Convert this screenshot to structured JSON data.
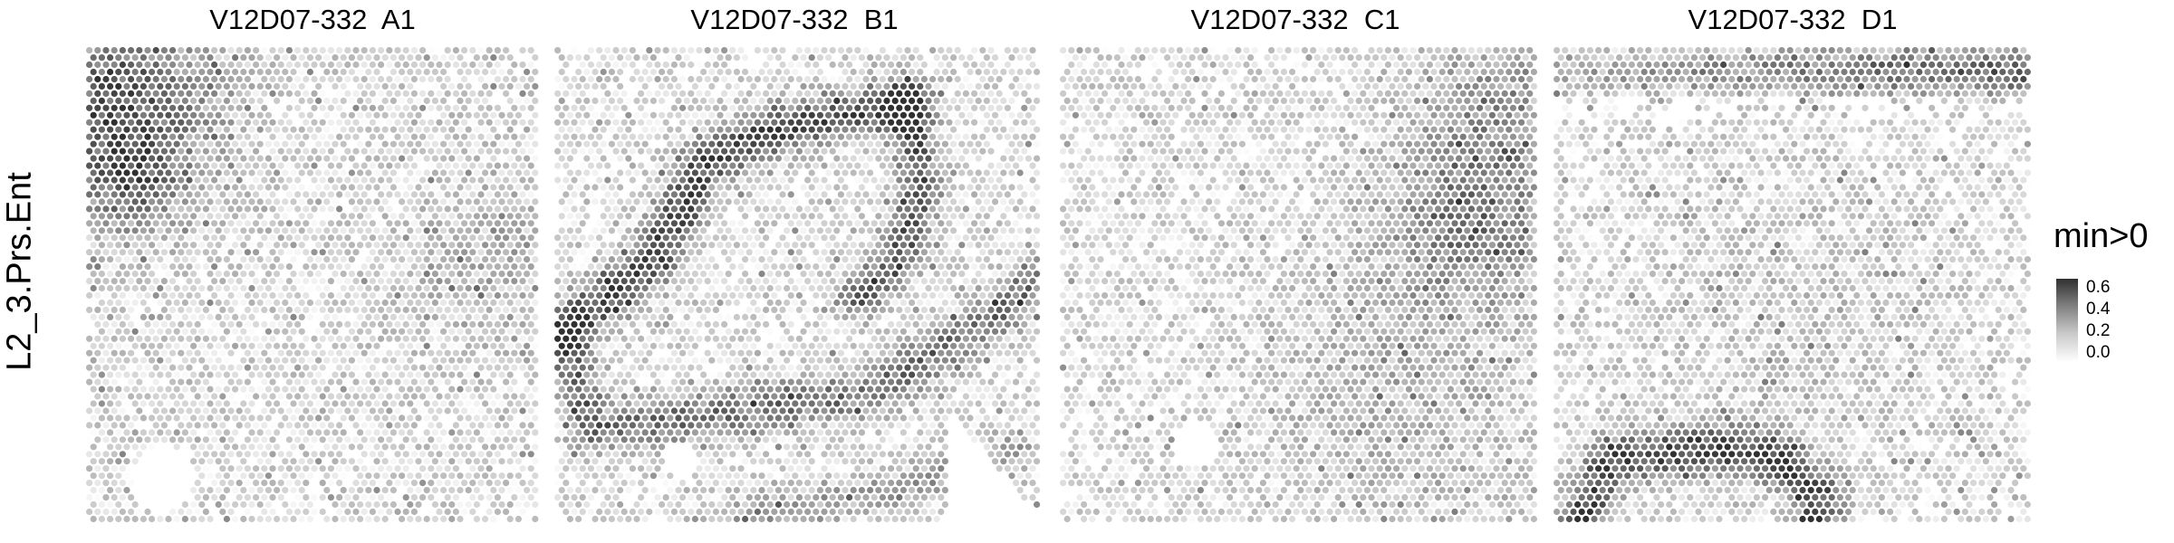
{
  "chart_data": {
    "type": "heatmap",
    "row_label": "L2_3.Prs.Ent",
    "panels": [
      {
        "title": "V12D07-332  A1"
      },
      {
        "title": "V12D07-332  B1"
      },
      {
        "title": "V12D07-332  C1"
      },
      {
        "title": "V12D07-332  D1"
      }
    ],
    "legend": {
      "title": "min>0",
      "placement": "right",
      "ticks": [
        "0.6",
        "0.4",
        "0.2",
        "0.0"
      ],
      "range": [
        0.0,
        0.68
      ],
      "colors": {
        "low": "#ffffff",
        "high": "#303030"
      }
    },
    "grid": false
  }
}
